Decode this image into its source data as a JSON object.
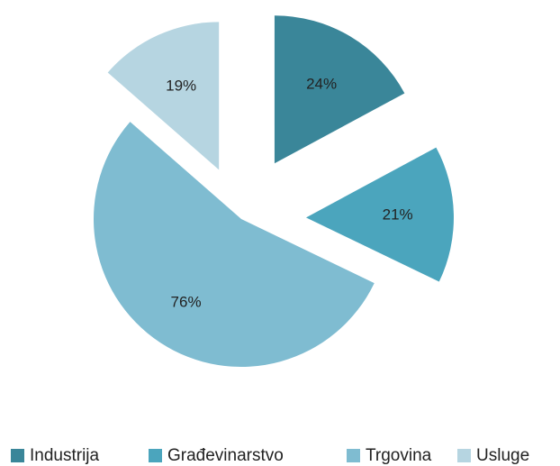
{
  "chart_data": {
    "type": "pie",
    "categories": [
      "Industrija",
      "Građevinarstvo",
      "Trgovina",
      "Usluge"
    ],
    "values": [
      24,
      21,
      76,
      19
    ],
    "value_labels": [
      "24%",
      "21%",
      "76%",
      "19%"
    ],
    "colors": [
      "#3a8699",
      "#4ba5bd",
      "#7fbcd1",
      "#b6d5e1"
    ],
    "legend": "bottom"
  }
}
